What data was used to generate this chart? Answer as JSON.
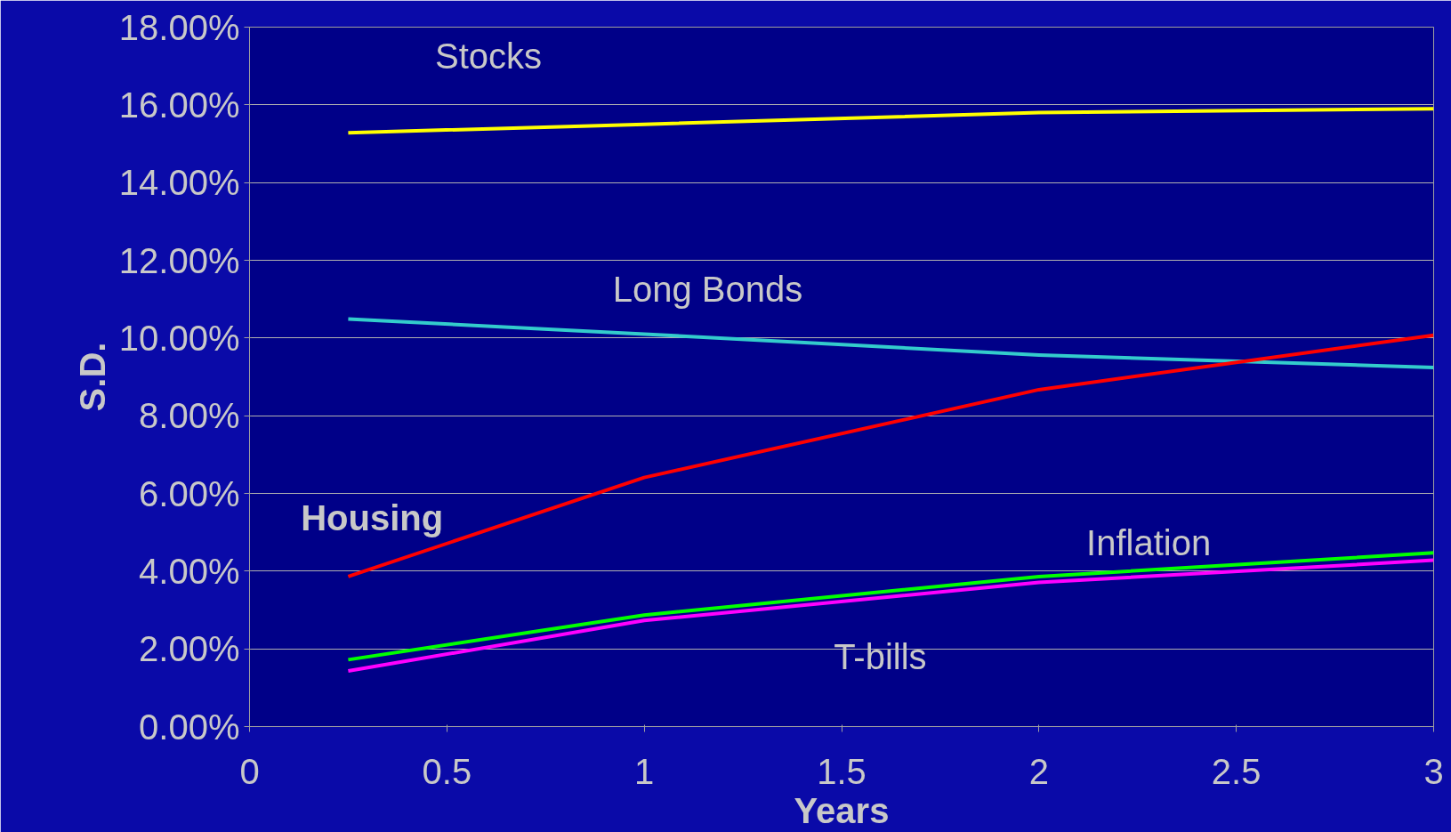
{
  "chart_data": {
    "type": "line",
    "xlabel": "Years",
    "ylabel": "S.D.",
    "x": [
      0.25,
      1,
      2,
      3
    ],
    "series": [
      {
        "name": "Stocks",
        "color": "#ffff00",
        "values": [
          15.28,
          15.5,
          15.8,
          15.9
        ]
      },
      {
        "name": "Long Bonds",
        "color": "#33cccc",
        "values": [
          10.49,
          10.1,
          9.56,
          9.24
        ]
      },
      {
        "name": "Housing",
        "color": "#ff0000",
        "values": [
          3.86,
          6.41,
          8.67,
          10.07
        ]
      },
      {
        "name": "Inflation",
        "color": "#00ff00",
        "values": [
          1.72,
          2.87,
          3.86,
          4.47
        ]
      },
      {
        "name": "T-bills",
        "color": "#ff00ff",
        "values": [
          1.43,
          2.73,
          3.71,
          4.28
        ]
      }
    ],
    "xlim": [
      0,
      3
    ],
    "xticks": [
      0,
      0.5,
      1,
      1.5,
      2,
      2.5,
      3
    ],
    "ylim": [
      0,
      18
    ],
    "yticks": [
      {
        "value": 0,
        "label": "0.00%"
      },
      {
        "value": 2,
        "label": "2.00%"
      },
      {
        "value": 4,
        "label": "4.00%"
      },
      {
        "value": 6,
        "label": "6.00%"
      },
      {
        "value": 8,
        "label": "8.00%"
      },
      {
        "value": 10,
        "label": "10.00%"
      },
      {
        "value": 12,
        "label": "12.00%"
      },
      {
        "value": 14,
        "label": "14.00%"
      },
      {
        "value": 16,
        "label": "16.00%"
      },
      {
        "value": 18,
        "label": "18.00%"
      }
    ],
    "grid": "y",
    "marker": "none",
    "line_style": "solid"
  }
}
